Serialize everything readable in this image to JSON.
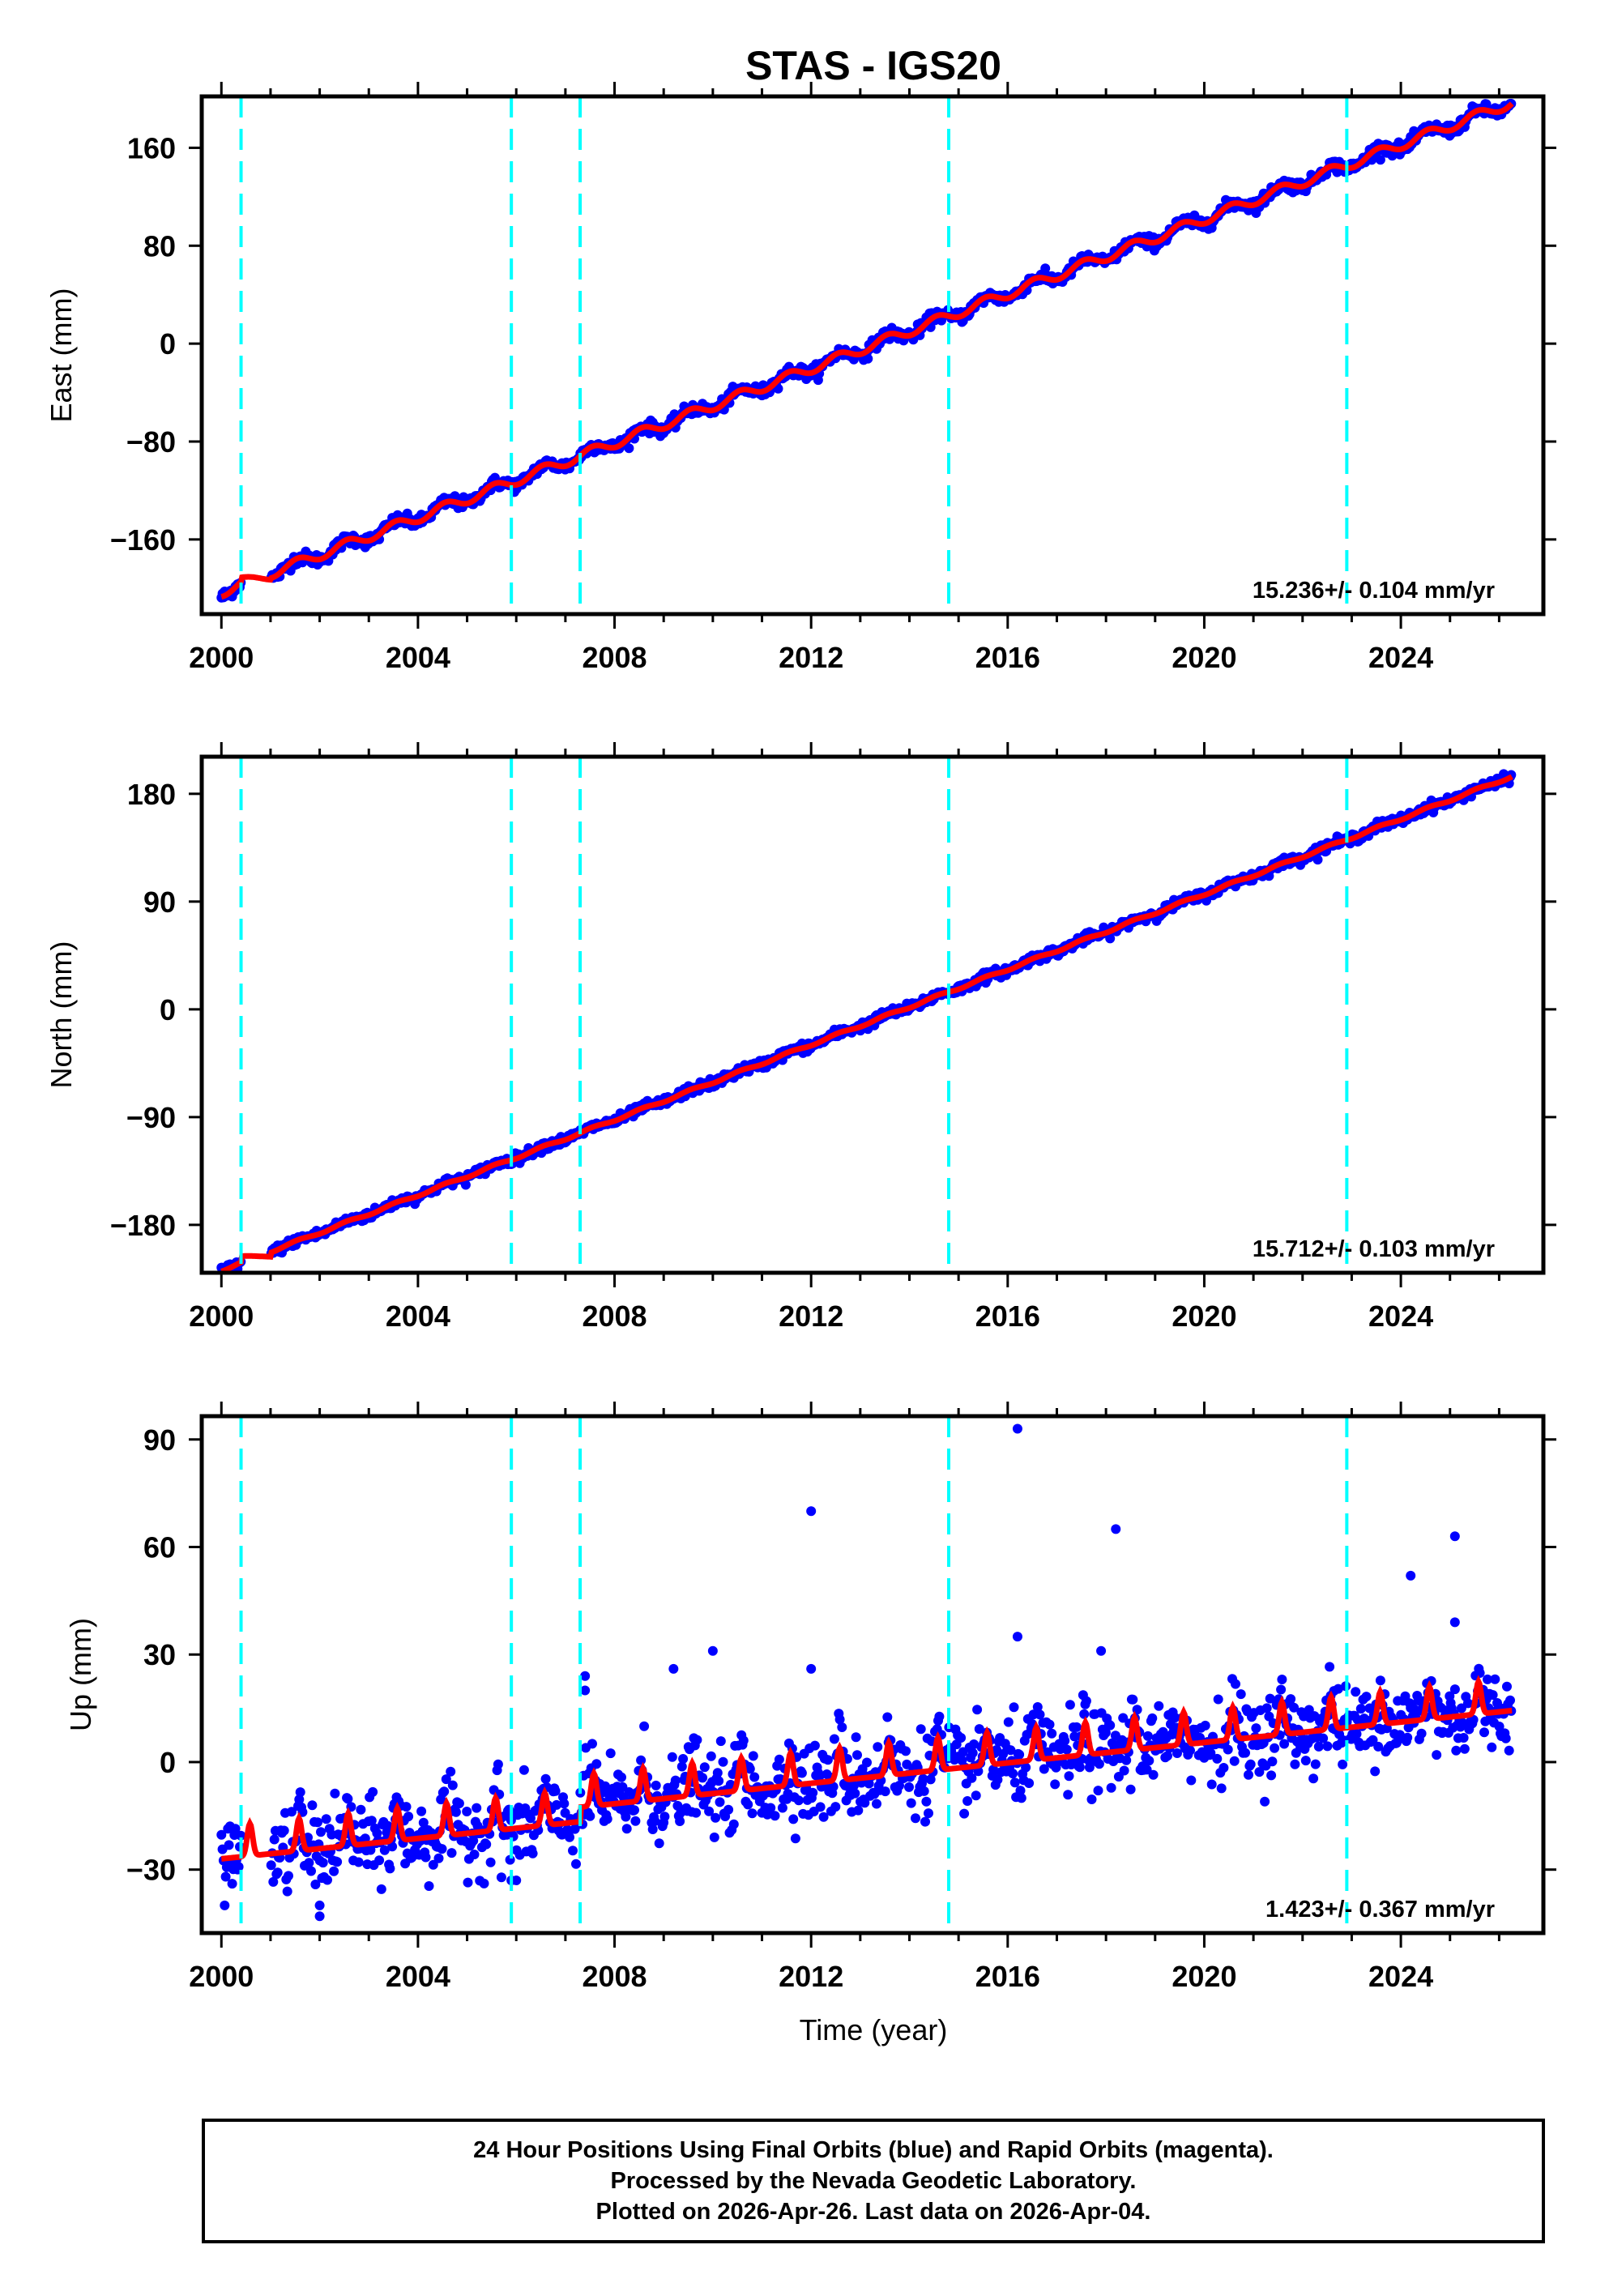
{
  "title": "STAS - IGS20",
  "xlabel": "Time (year)",
  "footer": {
    "line1": "24 Hour Positions Using Final Orbits (blue) and Rapid Orbits (magenta).",
    "line2": "Processed by the Nevada Geodetic Laboratory.",
    "line3": "Plotted on 2026-Apr-26. Last data on 2026-Apr-04."
  },
  "colors": {
    "data": "#0000ff",
    "model": "#ff0000",
    "steps": "#00ffff",
    "axes": "#000000"
  },
  "chart_data": [
    {
      "type": "scatter",
      "name": "east",
      "ylabel": "East (mm)",
      "xlim": [
        1999.6,
        2026.9
      ],
      "ylim": [
        -221,
        202
      ],
      "xticks": [
        2000,
        2004,
        2008,
        2012,
        2016,
        2020,
        2024
      ],
      "xtick_labels": [
        "2000",
        "2004",
        "2008",
        "2012",
        "2016",
        "2020",
        "2024"
      ],
      "yticks": [
        -160,
        -80,
        0,
        80,
        160
      ],
      "ytick_labels": [
        "−160",
        "−80",
        "0",
        "80",
        "160"
      ],
      "rate_label": "15.236+/- 0.104 mm/yr",
      "velocity": 15.236,
      "value_at_2000": -203,
      "seasonal_amplitude": 4,
      "noise": 2.5,
      "x_range": [
        2000.0,
        2026.26
      ],
      "step_epochs": [
        2000.4,
        2005.9,
        2007.3,
        2014.8,
        2022.9
      ],
      "outliers": []
    },
    {
      "type": "scatter",
      "name": "north",
      "ylabel": "North (mm)",
      "xlim": [
        1999.6,
        2026.9
      ],
      "ylim": [
        -220,
        211
      ],
      "xticks": [
        2000,
        2004,
        2008,
        2012,
        2016,
        2020,
        2024
      ],
      "xtick_labels": [
        "2000",
        "2004",
        "2008",
        "2012",
        "2016",
        "2020",
        "2024"
      ],
      "yticks": [
        -180,
        -90,
        0,
        90,
        180
      ],
      "ytick_labels": [
        "−180",
        "−90",
        "0",
        "90",
        "180"
      ],
      "rate_label": "15.712+/- 0.103 mm/yr",
      "velocity": 15.712,
      "value_at_2000": -218,
      "seasonal_amplitude": 1,
      "noise": 2,
      "x_range": [
        2000.0,
        2026.26
      ],
      "step_epochs": [
        2000.4,
        2005.9,
        2007.3,
        2014.8,
        2022.9
      ],
      "outliers": []
    },
    {
      "type": "scatter",
      "name": "up",
      "ylabel": "Up (mm)",
      "xlim": [
        1999.6,
        2026.9
      ],
      "ylim": [
        -47.7,
        96.5
      ],
      "xticks": [
        2000,
        2004,
        2008,
        2012,
        2016,
        2020,
        2024
      ],
      "xtick_labels": [
        "2000",
        "2004",
        "2008",
        "2012",
        "2016",
        "2020",
        "2024"
      ],
      "yticks": [
        -30,
        0,
        30,
        60,
        90
      ],
      "ytick_labels": [
        "−30",
        "0",
        "30",
        "60",
        "90"
      ],
      "rate_label": "1.423+/- 0.367 mm/yr",
      "velocity": 1.423,
      "value_at_2000": -24,
      "seasonal_amplitude": 9,
      "noise": 5.5,
      "x_range": [
        2000.0,
        2026.26
      ],
      "step_epochs": [
        2000.4,
        2005.9,
        2007.3,
        2014.8,
        2022.9
      ],
      "outliers": [
        [
          2012.0,
          70
        ],
        [
          2016.2,
          93
        ],
        [
          2016.2,
          35
        ],
        [
          2018.2,
          65
        ],
        [
          2024.2,
          52
        ],
        [
          2025.1,
          63
        ],
        [
          2025.1,
          39
        ],
        [
          2010.0,
          31
        ],
        [
          2009.2,
          26
        ],
        [
          2012.0,
          26
        ],
        [
          2002.0,
          -43
        ],
        [
          2002.0,
          -40
        ],
        [
          2005.9,
          -33
        ],
        [
          2006.0,
          -33
        ],
        [
          2007.4,
          24
        ],
        [
          2007.4,
          20
        ],
        [
          2017.9,
          31
        ]
      ]
    }
  ]
}
